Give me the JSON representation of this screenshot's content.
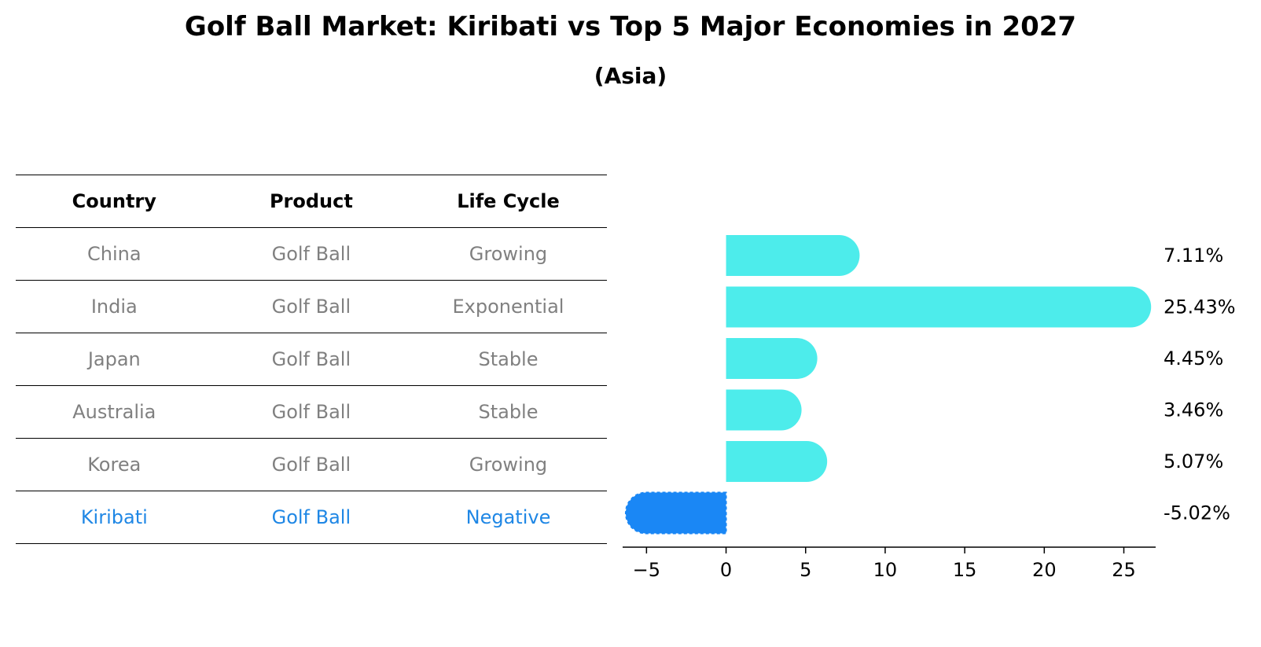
{
  "title": "Golf Ball Market: Kiribati vs Top 5 Major Economies in 2027",
  "subtitle": "(Asia)",
  "table": {
    "headers": [
      "Country",
      "Product",
      "Life Cycle"
    ],
    "rows": [
      [
        "China",
        "Golf Ball",
        "Growing"
      ],
      [
        "India",
        "Golf Ball",
        "Exponential"
      ],
      [
        "Japan",
        "Golf Ball",
        "Stable"
      ],
      [
        "Australia",
        "Golf Ball",
        "Stable"
      ],
      [
        "Korea",
        "Golf Ball",
        "Growing"
      ],
      [
        "Kiribati",
        "Golf Ball",
        "Negative"
      ]
    ]
  },
  "colors": {
    "bar": "#4deceb",
    "highlight_bar": "#1a87f5",
    "highlight_text": "#1f87e5",
    "muted_text": "#808080"
  },
  "chart_data": {
    "type": "bar",
    "orientation": "horizontal",
    "categories": [
      "China",
      "India",
      "Japan",
      "Australia",
      "Korea",
      "Kiribati"
    ],
    "values": [
      7.11,
      25.43,
      4.45,
      3.46,
      5.07,
      -5.02
    ],
    "value_labels": [
      "7.11%",
      "25.43%",
      "4.45%",
      "3.46%",
      "5.07%",
      "-5.02%"
    ],
    "highlight_index": 5,
    "xlim": [
      -6.5,
      27
    ],
    "xticks": [
      -5,
      0,
      5,
      10,
      15,
      20,
      25
    ],
    "xtick_labels": [
      "−5",
      "0",
      "5",
      "10",
      "15",
      "20",
      "25"
    ],
    "title": "Golf Ball Market: Kiribati vs Top 5 Major Economies in 2027",
    "xlabel": "",
    "ylabel": ""
  }
}
